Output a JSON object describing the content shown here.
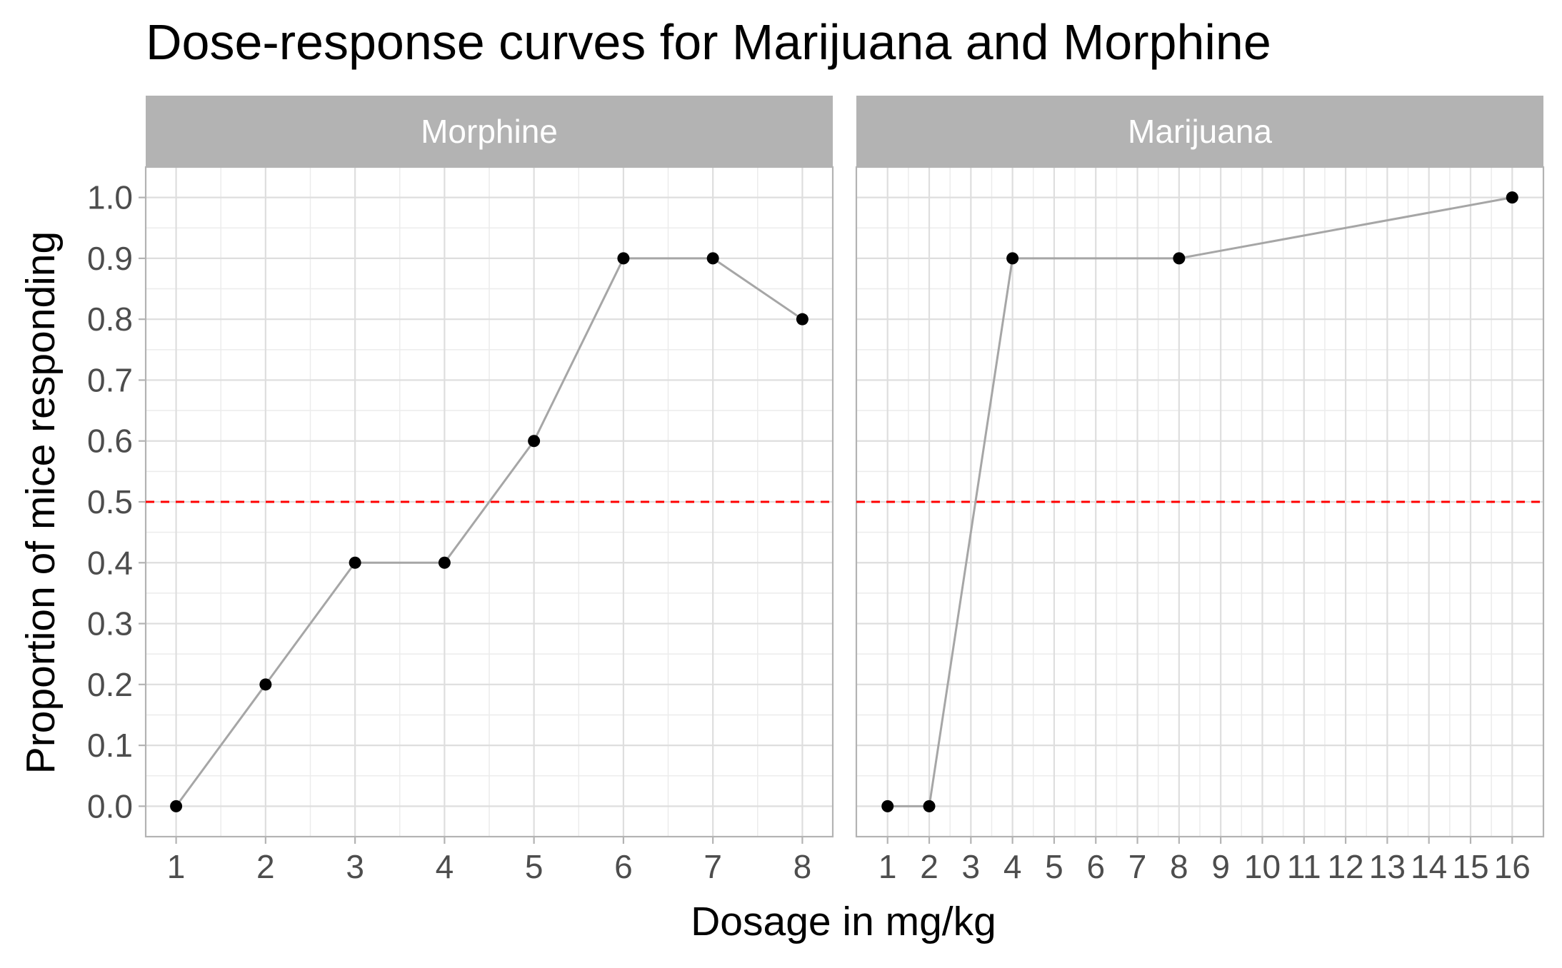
{
  "colors": {
    "background": "#ffffff",
    "strip_fill": "#b3b3b3",
    "strip_text": "#ffffff",
    "panel_border": "#b3b3b3",
    "grid_major": "#dedede",
    "grid_minor": "#ececec",
    "line": "#a6a6a6",
    "point": "#000000",
    "reference_line": "#ff0000"
  },
  "chart_data": {
    "type": "line",
    "title": "Dose-response curves for Marijuana and Morphine",
    "xlabel": "Dosage in mg/kg",
    "ylabel": "Proportion of mice responding",
    "ylim": [
      -0.05,
      1.05
    ],
    "y_ticks": [
      "0.0",
      "0.1",
      "0.2",
      "0.3",
      "0.4",
      "0.5",
      "0.6",
      "0.7",
      "0.8",
      "0.9",
      "1.0"
    ],
    "grid": true,
    "reference_line": {
      "y": 0.5,
      "style": "dashed",
      "color": "#ff0000"
    },
    "panels": [
      {
        "strip_label": "Morphine",
        "xlim": [
          0.66,
          8.34
        ],
        "x_ticks": [
          "1",
          "2",
          "3",
          "4",
          "5",
          "6",
          "7",
          "8"
        ],
        "x": [
          1,
          2,
          3,
          4,
          5,
          6,
          7,
          8
        ],
        "y": [
          0.0,
          0.2,
          0.4,
          0.4,
          0.6,
          0.9,
          0.9,
          0.8
        ]
      },
      {
        "strip_label": "Marijuana",
        "xlim": [
          0.25,
          16.75
        ],
        "x_ticks": [
          "1",
          "2",
          "3",
          "4",
          "5",
          "6",
          "7",
          "8",
          "9",
          "10",
          "11",
          "12",
          "13",
          "14",
          "15",
          "16"
        ],
        "x": [
          1,
          2,
          4,
          8,
          16
        ],
        "y": [
          0.0,
          0.0,
          0.9,
          0.9,
          1.0
        ]
      }
    ]
  }
}
